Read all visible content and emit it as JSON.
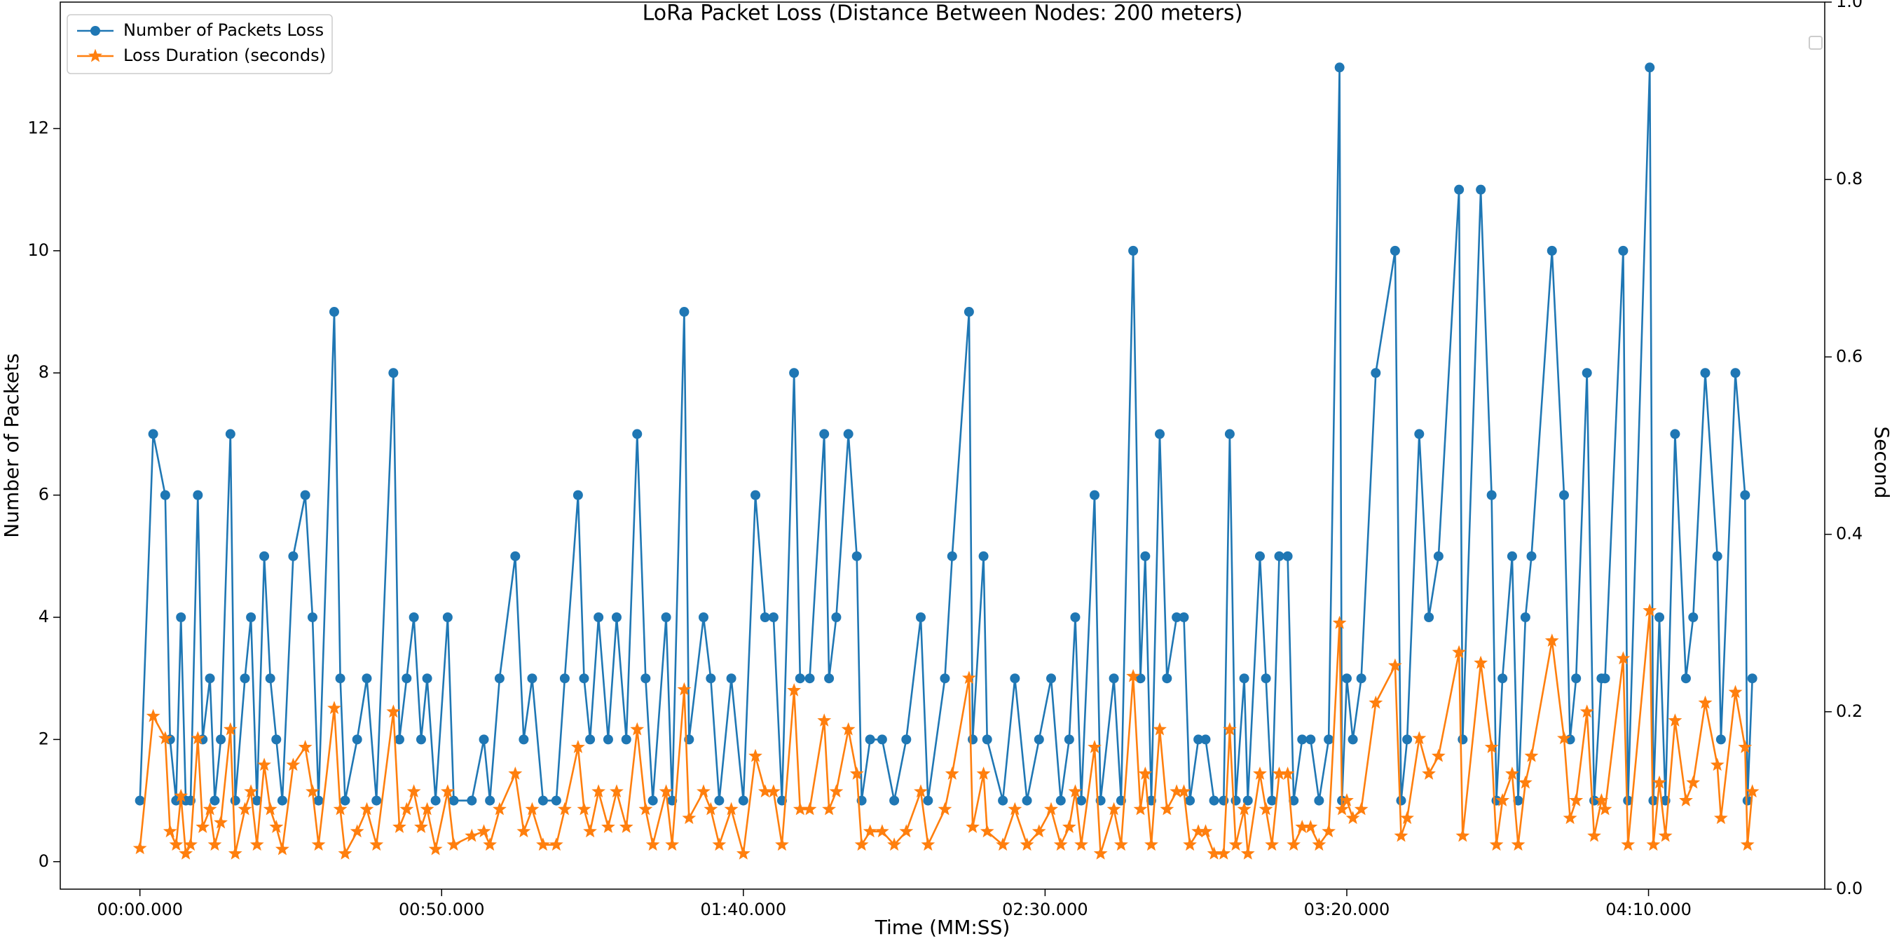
{
  "chart_data": {
    "type": "line",
    "title": "LoRa Packet Loss (Distance Between Nodes: 200 meters)",
    "xlabel": "Time (MM:SS)",
    "ylabel": "Number of Packets",
    "y2label": "Second",
    "legend": "upper left",
    "xlim": [
      -13.2,
      279.2
    ],
    "xticks": [
      {
        "value": 0,
        "label": "00:00.000"
      },
      {
        "value": 50,
        "label": "00:50.000"
      },
      {
        "value": 100,
        "label": "01:40.000"
      },
      {
        "value": 150,
        "label": "02:30.000"
      },
      {
        "value": 200,
        "label": "03:20.000"
      },
      {
        "value": 250,
        "label": "04:10.000"
      }
    ],
    "ylim": [
      -0.45,
      14.07
    ],
    "yticks": [
      0,
      2,
      4,
      6,
      8,
      10,
      12
    ],
    "y2lim": [
      0,
      1
    ],
    "y2ticks": [
      {
        "value": 0,
        "label": "0.0"
      },
      0.2,
      0.4,
      0.6,
      0.8,
      {
        "value": 1,
        "label": "1.0"
      }
    ],
    "x": [
      0,
      2.2,
      4.2,
      5,
      6,
      6.8,
      7.6,
      8.4,
      9.6,
      10.4,
      11.6,
      12.4,
      13.4,
      15,
      15.8,
      17.4,
      18.4,
      19.4,
      20.6,
      21.6,
      22.6,
      23.6,
      25.4,
      27.4,
      28.6,
      29.6,
      32.2,
      33.2,
      34,
      36,
      37.6,
      39.2,
      42,
      43,
      44.2,
      45.4,
      46.6,
      47.6,
      49,
      51,
      52,
      55,
      57,
      58,
      59.6,
      62.2,
      63.6,
      65,
      66.8,
      69,
      70.4,
      72.6,
      73.6,
      74.6,
      76,
      77.6,
      79,
      80.6,
      82.4,
      83.8,
      85,
      87.2,
      88.2,
      90.2,
      91,
      93.4,
      94.6,
      96,
      98,
      100,
      102,
      103.6,
      105,
      106.4,
      108.4,
      109.4,
      111,
      113.4,
      114.2,
      115.4,
      117.4,
      118.8,
      119.6,
      121,
      123,
      125,
      127,
      129.4,
      130.6,
      133.4,
      134.6,
      137.4,
      138,
      139.8,
      140.4,
      143,
      145,
      147,
      149,
      151,
      152.6,
      154,
      155,
      156,
      158.2,
      159.2,
      161.4,
      162.6,
      164.6,
      165.8,
      166.6,
      167.6,
      169,
      170.2,
      171.8,
      173,
      174,
      175.4,
      176.6,
      178,
      179.6,
      180.6,
      181.6,
      183,
      183.6,
      185.6,
      186.6,
      187.6,
      188.8,
      190.2,
      191.2,
      192.6,
      194,
      195.4,
      197,
      198.8,
      199.2,
      200,
      201,
      202.4,
      204.8,
      208,
      209,
      210,
      212,
      213.6,
      215.2,
      218.6,
      219.2,
      222.2,
      224,
      224.8,
      225.8,
      227.4,
      228.4,
      229.6,
      230.6,
      234,
      236,
      237,
      238,
      239.8,
      241,
      242.2,
      242.8,
      245.8,
      246.6,
      250.2,
      250.8,
      251.8,
      252.8,
      254.4,
      256.2,
      257.4,
      259.4,
      261.4,
      262,
      264.4,
      266,
      266.4,
      267.2
    ],
    "series": [
      {
        "name": "Number of Packets Loss",
        "color": "#1f77b4",
        "marker": "o",
        "axis": "y",
        "values": [
          1,
          7,
          6,
          2,
          1,
          4,
          1,
          1,
          6,
          2,
          3,
          1,
          2,
          7,
          1,
          3,
          4,
          1,
          5,
          3,
          2,
          1,
          5,
          6,
          4,
          1,
          9,
          3,
          1,
          2,
          3,
          1,
          8,
          2,
          3,
          4,
          2,
          3,
          1,
          4,
          1,
          1,
          2,
          1,
          3,
          5,
          2,
          3,
          1,
          1,
          3,
          6,
          3,
          2,
          4,
          2,
          4,
          2,
          7,
          3,
          1,
          4,
          1,
          9,
          2,
          4,
          3,
          1,
          3,
          1,
          6,
          4,
          4,
          1,
          8,
          3,
          3,
          7,
          3,
          4,
          7,
          5,
          1,
          2,
          2,
          1,
          2,
          4,
          1,
          3,
          5,
          9,
          2,
          5,
          2,
          1,
          3,
          1,
          2,
          3,
          1,
          2,
          4,
          1,
          6,
          1,
          3,
          1,
          10,
          3,
          5,
          1,
          7,
          3,
          4,
          4,
          1,
          2,
          2,
          1,
          1,
          7,
          1,
          3,
          1,
          5,
          3,
          1,
          5,
          5,
          1,
          2,
          2,
          1,
          2,
          13,
          1,
          3,
          2,
          3,
          8,
          10,
          1,
          2,
          7,
          4,
          5,
          11,
          2,
          11,
          6,
          1,
          3,
          5,
          1,
          4,
          5,
          10,
          6,
          2,
          3,
          8,
          1,
          3,
          3,
          10,
          1,
          13,
          1,
          4,
          1,
          7,
          3,
          4,
          8,
          5,
          2,
          8,
          6,
          1,
          3
        ]
      },
      {
        "name": "Loss Duration (seconds)",
        "color": "#ff7f0e",
        "marker": "*",
        "axis": "y2",
        "values": [
          0.046,
          0.195,
          0.17,
          0.065,
          0.05,
          0.105,
          0.04,
          0.05,
          0.17,
          0.07,
          0.09,
          0.05,
          0.075,
          0.18,
          0.04,
          0.09,
          0.11,
          0.05,
          0.14,
          0.09,
          0.07,
          0.045,
          0.14,
          0.16,
          0.11,
          0.05,
          0.204,
          0.09,
          0.04,
          0.065,
          0.09,
          0.05,
          0.2,
          0.07,
          0.09,
          0.11,
          0.07,
          0.09,
          0.045,
          0.11,
          0.05,
          0.06,
          0.065,
          0.05,
          0.09,
          0.13,
          0.065,
          0.09,
          0.05,
          0.05,
          0.09,
          0.16,
          0.09,
          0.065,
          0.11,
          0.07,
          0.11,
          0.07,
          0.18,
          0.09,
          0.05,
          0.11,
          0.05,
          0.225,
          0.08,
          0.11,
          0.09,
          0.05,
          0.09,
          0.04,
          0.15,
          0.11,
          0.11,
          0.05,
          0.224,
          0.09,
          0.09,
          0.19,
          0.09,
          0.11,
          0.18,
          0.13,
          0.05,
          0.065,
          0.065,
          0.05,
          0.065,
          0.11,
          0.05,
          0.09,
          0.13,
          0.238,
          0.07,
          0.13,
          0.065,
          0.05,
          0.09,
          0.05,
          0.065,
          0.09,
          0.05,
          0.07,
          0.11,
          0.05,
          0.16,
          0.04,
          0.09,
          0.05,
          0.24,
          0.09,
          0.13,
          0.05,
          0.18,
          0.09,
          0.11,
          0.11,
          0.05,
          0.065,
          0.065,
          0.04,
          0.04,
          0.18,
          0.05,
          0.09,
          0.04,
          0.13,
          0.09,
          0.05,
          0.13,
          0.13,
          0.05,
          0.07,
          0.07,
          0.05,
          0.065,
          0.3,
          0.09,
          0.1,
          0.08,
          0.09,
          0.21,
          0.252,
          0.06,
          0.08,
          0.17,
          0.13,
          0.15,
          0.267,
          0.06,
          0.255,
          0.16,
          0.05,
          0.1,
          0.13,
          0.05,
          0.12,
          0.15,
          0.28,
          0.17,
          0.08,
          0.1,
          0.2,
          0.06,
          0.1,
          0.09,
          0.26,
          0.05,
          0.314,
          0.05,
          0.12,
          0.06,
          0.19,
          0.1,
          0.12,
          0.21,
          0.14,
          0.08,
          0.222,
          0.16,
          0.05,
          0.11
        ]
      }
    ]
  }
}
